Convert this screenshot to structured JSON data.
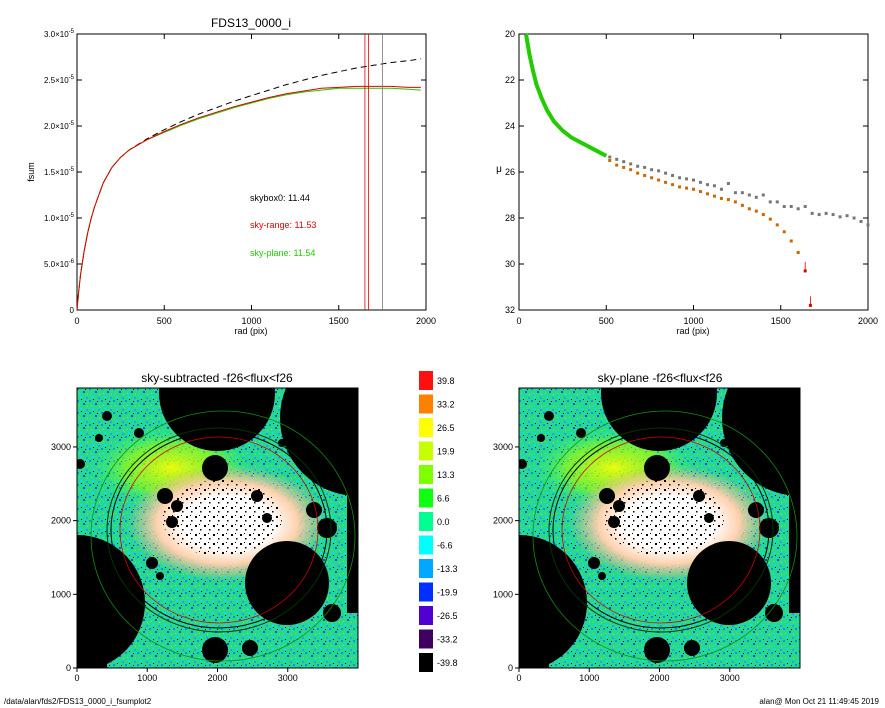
{
  "page": {
    "footer_left": "/data/alan/fds2/FDS13_0000_i_fsumplot2",
    "footer_right": "alan@  Mon Oct 21 11:49:45 2019"
  },
  "colors": {
    "skybox": "#000000",
    "sky_range": "#e00000",
    "sky_plane": "#22cc00",
    "grey_profile": "#777777",
    "orange_profile": "#cc6600"
  },
  "chart_data": [
    {
      "id": "curve_of_growth",
      "type": "line",
      "title": "FDS13_0000_i",
      "xlabel": "rad (pix)",
      "ylabel": "fsum",
      "xlim": [
        0,
        2000
      ],
      "ylim": [
        0,
        3e-05
      ],
      "xticks": [
        "0",
        "500",
        "1000",
        "1500",
        "2000"
      ],
      "yticks": [
        {
          "mant": "0",
          "exp": ""
        },
        {
          "mant": "5.0×10",
          "exp": "-6"
        },
        {
          "mant": "1.0×10",
          "exp": "-5"
        },
        {
          "mant": "1.5×10",
          "exp": "-5"
        },
        {
          "mant": "2.0×10",
          "exp": "-5"
        },
        {
          "mant": "2.5×10",
          "exp": "-5"
        },
        {
          "mant": "3.0×10",
          "exp": "-5"
        }
      ],
      "annotations": [
        {
          "label": "skybox0: 11.44",
          "color": "#000000"
        },
        {
          "label": "sky-range: 11.53",
          "color": "#e00000"
        },
        {
          "label": "sky-plane: 11.54",
          "color": "#22cc00"
        }
      ],
      "series": [
        {
          "color": "#000000",
          "dash": true,
          "x": [
            0,
            10,
            20,
            40,
            60,
            80,
            100,
            150,
            200,
            250,
            300,
            400,
            500,
            600,
            700,
            800,
            900,
            1000,
            1100,
            1200,
            1300,
            1400,
            1500,
            1600,
            1700,
            1800,
            1900,
            1970
          ],
          "y": [
            0,
            2e-06,
            3.8e-06,
            6.3e-06,
            8.3e-06,
            9.9e-06,
            1.12e-05,
            1.38e-05,
            1.55e-05,
            1.66e-05,
            1.74e-05,
            1.86e-05,
            1.96e-05,
            2.05e-05,
            2.13e-05,
            2.2e-05,
            2.27e-05,
            2.33e-05,
            2.39e-05,
            2.45e-05,
            2.5e-05,
            2.55e-05,
            2.59e-05,
            2.63e-05,
            2.66e-05,
            2.69e-05,
            2.71e-05,
            2.73e-05
          ]
        },
        {
          "color": "#22cc00",
          "dash": false,
          "x": [
            0,
            10,
            20,
            40,
            60,
            80,
            100,
            150,
            200,
            250,
            300,
            400,
            500,
            600,
            700,
            800,
            900,
            1000,
            1100,
            1200,
            1300,
            1400,
            1500,
            1600,
            1700,
            1800,
            1900,
            1970
          ],
          "y": [
            0,
            2e-06,
            3.8e-06,
            6.3e-06,
            8.3e-06,
            9.9e-06,
            1.12e-05,
            1.38e-05,
            1.55e-05,
            1.66e-05,
            1.74e-05,
            1.85e-05,
            1.93e-05,
            2.01e-05,
            2.08e-05,
            2.14e-05,
            2.2e-05,
            2.25e-05,
            2.3e-05,
            2.34e-05,
            2.37e-05,
            2.39e-05,
            2.41e-05,
            2.41e-05,
            2.41e-05,
            2.41e-05,
            2.4e-05,
            2.39e-05
          ]
        },
        {
          "color": "#e00000",
          "dash": false,
          "x": [
            0,
            10,
            20,
            40,
            60,
            80,
            100,
            150,
            200,
            250,
            300,
            400,
            500,
            600,
            700,
            800,
            900,
            1000,
            1100,
            1200,
            1300,
            1400,
            1500,
            1600,
            1700,
            1800,
            1900,
            1970
          ],
          "y": [
            0,
            2e-06,
            3.8e-06,
            6.3e-06,
            8.3e-06,
            9.9e-06,
            1.12e-05,
            1.38e-05,
            1.55e-05,
            1.66e-05,
            1.74e-05,
            1.85e-05,
            1.94e-05,
            2.02e-05,
            2.09e-05,
            2.15e-05,
            2.21e-05,
            2.26e-05,
            2.31e-05,
            2.35e-05,
            2.38e-05,
            2.41e-05,
            2.42e-05,
            2.43e-05,
            2.43e-05,
            2.43e-05,
            2.42e-05,
            2.42e-05
          ]
        }
      ],
      "vlines": [
        {
          "x": 1650,
          "color": "#e00000"
        },
        {
          "x": 1670,
          "color": "#e00000"
        },
        {
          "x": 1750,
          "color": "#777777"
        }
      ]
    },
    {
      "id": "surface_brightness",
      "type": "scatter",
      "title": "",
      "xlabel": "rad (pix)",
      "ylabel": "μ",
      "xlim": [
        0,
        2000
      ],
      "ylim": [
        32,
        20
      ],
      "xticks": [
        "0",
        "500",
        "1000",
        "1500",
        "2000"
      ],
      "yticks": [
        "20",
        "22",
        "24",
        "26",
        "28",
        "30",
        "32"
      ],
      "series": [
        {
          "color": "#22cc00",
          "kind": "line",
          "x": [
            40,
            60,
            80,
            100,
            130,
            160,
            200,
            250,
            300,
            350,
            400,
            450,
            500
          ],
          "y": [
            20.0,
            20.9,
            21.6,
            22.2,
            22.8,
            23.3,
            23.8,
            24.2,
            24.5,
            24.7,
            24.9,
            25.1,
            25.3
          ]
        },
        {
          "color": "#777777",
          "kind": "points",
          "x": [
            520,
            560,
            600,
            640,
            680,
            720,
            760,
            800,
            840,
            880,
            920,
            960,
            1000,
            1040,
            1080,
            1120,
            1160,
            1200,
            1240,
            1280,
            1320,
            1360,
            1400,
            1440,
            1480,
            1520,
            1560,
            1600,
            1640,
            1680,
            1720,
            1760,
            1800,
            1840,
            1880,
            1920,
            1960,
            2000
          ],
          "y": [
            25.35,
            25.45,
            25.55,
            25.65,
            25.75,
            25.8,
            25.9,
            25.95,
            26.05,
            26.15,
            26.25,
            26.3,
            26.35,
            26.45,
            26.55,
            26.6,
            26.75,
            26.5,
            26.9,
            26.9,
            27.0,
            27.1,
            27.0,
            27.3,
            27.3,
            27.5,
            27.5,
            27.6,
            27.5,
            27.8,
            27.85,
            27.8,
            27.85,
            27.95,
            27.9,
            28.0,
            28.15,
            28.3
          ]
        },
        {
          "color": "#cc6600",
          "kind": "points",
          "x": [
            520,
            560,
            600,
            640,
            680,
            720,
            760,
            800,
            840,
            880,
            920,
            960,
            1000,
            1040,
            1080,
            1120,
            1160,
            1200,
            1240,
            1280,
            1320,
            1360,
            1400,
            1440,
            1480,
            1520,
            1560,
            1600
          ],
          "y": [
            25.5,
            25.7,
            25.8,
            25.9,
            26.05,
            26.15,
            26.25,
            26.35,
            26.45,
            26.55,
            26.65,
            26.7,
            26.75,
            26.85,
            26.95,
            27.05,
            27.15,
            27.2,
            27.3,
            27.45,
            27.6,
            27.7,
            27.85,
            28.05,
            28.3,
            28.6,
            29.0,
            29.5
          ]
        },
        {
          "color": "#e00000",
          "kind": "points",
          "x": [
            1640,
            1670
          ],
          "y": [
            30.3,
            31.8
          ]
        }
      ]
    },
    {
      "id": "sky_subtracted_map",
      "type": "heatmap",
      "title": "sky-subtracted -f26<flux<f26",
      "xlim": [
        0,
        4000
      ],
      "ylim": [
        0,
        3800
      ],
      "xticks": [
        "0",
        "1000",
        "2000",
        "3000"
      ],
      "yticks": [
        "0",
        "1000",
        "2000",
        "3000"
      ]
    },
    {
      "id": "sky_plane_map",
      "type": "heatmap",
      "title": "sky-plane -f26<flux<f26",
      "xlim": [
        0,
        4000
      ],
      "ylim": [
        0,
        3800
      ],
      "xticks": [
        "0",
        "1000",
        "2000",
        "3000"
      ],
      "yticks": [
        "0",
        "1000",
        "2000",
        "3000"
      ]
    },
    {
      "id": "colorbar",
      "type": "table",
      "labels": [
        "39.8",
        "33.2",
        "26.5",
        "19.9",
        "13.3",
        "6.6",
        "0.0",
        "-6.6",
        "-13.3",
        "-19.9",
        "-26.5",
        "-33.2",
        "-39.8"
      ],
      "colors": [
        "#ff1010",
        "#ff8000",
        "#ffff00",
        "#c8ff00",
        "#80ff00",
        "#10ff10",
        "#00ff90",
        "#00ffff",
        "#00a8ff",
        "#0030ff",
        "#5000d0",
        "#400060",
        "#000000"
      ]
    }
  ]
}
